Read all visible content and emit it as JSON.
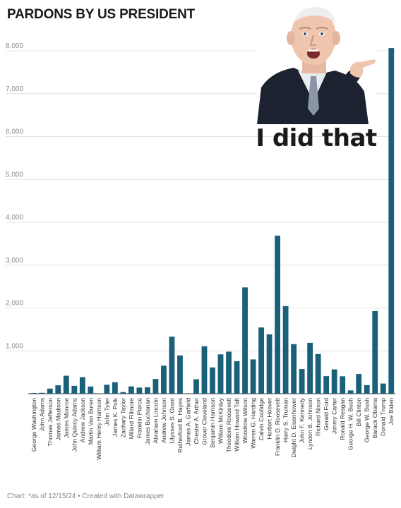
{
  "chart_data": {
    "type": "bar",
    "title": "PARDONS BY US PRESIDENT",
    "xlabel": "",
    "ylabel": "",
    "ylim": [
      0,
      8000
    ],
    "yticks": [
      "1,000",
      "2,000",
      "3,000",
      "4,000",
      "5,000",
      "6,000",
      "7,000",
      "8,000"
    ],
    "grid": true,
    "bar_color": "#1b6079",
    "categories": [
      "George Washington",
      "John Adams",
      "Thomas Jefferson",
      "James Madison",
      "James Monroe",
      "John Quincy Adams",
      "Andrew Jackson",
      "Martin Van Buren",
      "William Henry Harrison",
      "John Tyler",
      "James K. Polk",
      "Zachary Taylor",
      "Millard Fillmore",
      "Franklin Pierce",
      "James Buchanan",
      "Abraham Lincoln",
      "Andrew Johnson",
      "Ulysses S. Grant",
      "Rutherford B. Hayes",
      "James A. Garfield",
      "Chester A. Arthur",
      "Grover Cleveland",
      "Benjamin Harrison",
      "William McKinley",
      "Theodore Roosevelt",
      "William Howard Taft",
      "Woodrow Wilson",
      "Warren G. Harding",
      "Calvin Coolidge",
      "Herbert Hoover",
      "Franklin D. Roosevelt",
      "Harry S. Truman",
      "Dwight D. Eisenhower",
      "John F. Kennedy",
      "Lyndon B. Johnson",
      "Richard Nixon",
      "Gerald Ford",
      "Jimmy Carter",
      "Ronald Reagan",
      "George H. W. Bush",
      "Bill Clinton",
      "George W. Bush",
      "Barack Obama",
      "Donald Trump",
      "Joe Biden"
    ],
    "values": [
      16,
      21,
      119,
      196,
      419,
      183,
      386,
      168,
      0,
      209,
      268,
      38,
      170,
      142,
      150,
      343,
      654,
      1332,
      893,
      0,
      337,
      1107,
      613,
      918,
      981,
      758,
      2480,
      800,
      1545,
      1385,
      3687,
      2044,
      1157,
      575,
      1187,
      926,
      409,
      566,
      406,
      77,
      459,
      200,
      1927,
      237,
      8064
    ]
  },
  "footer": "Chart: *as of 12/15/24 • Created with Datawrapper",
  "meme_caption": "I did that"
}
